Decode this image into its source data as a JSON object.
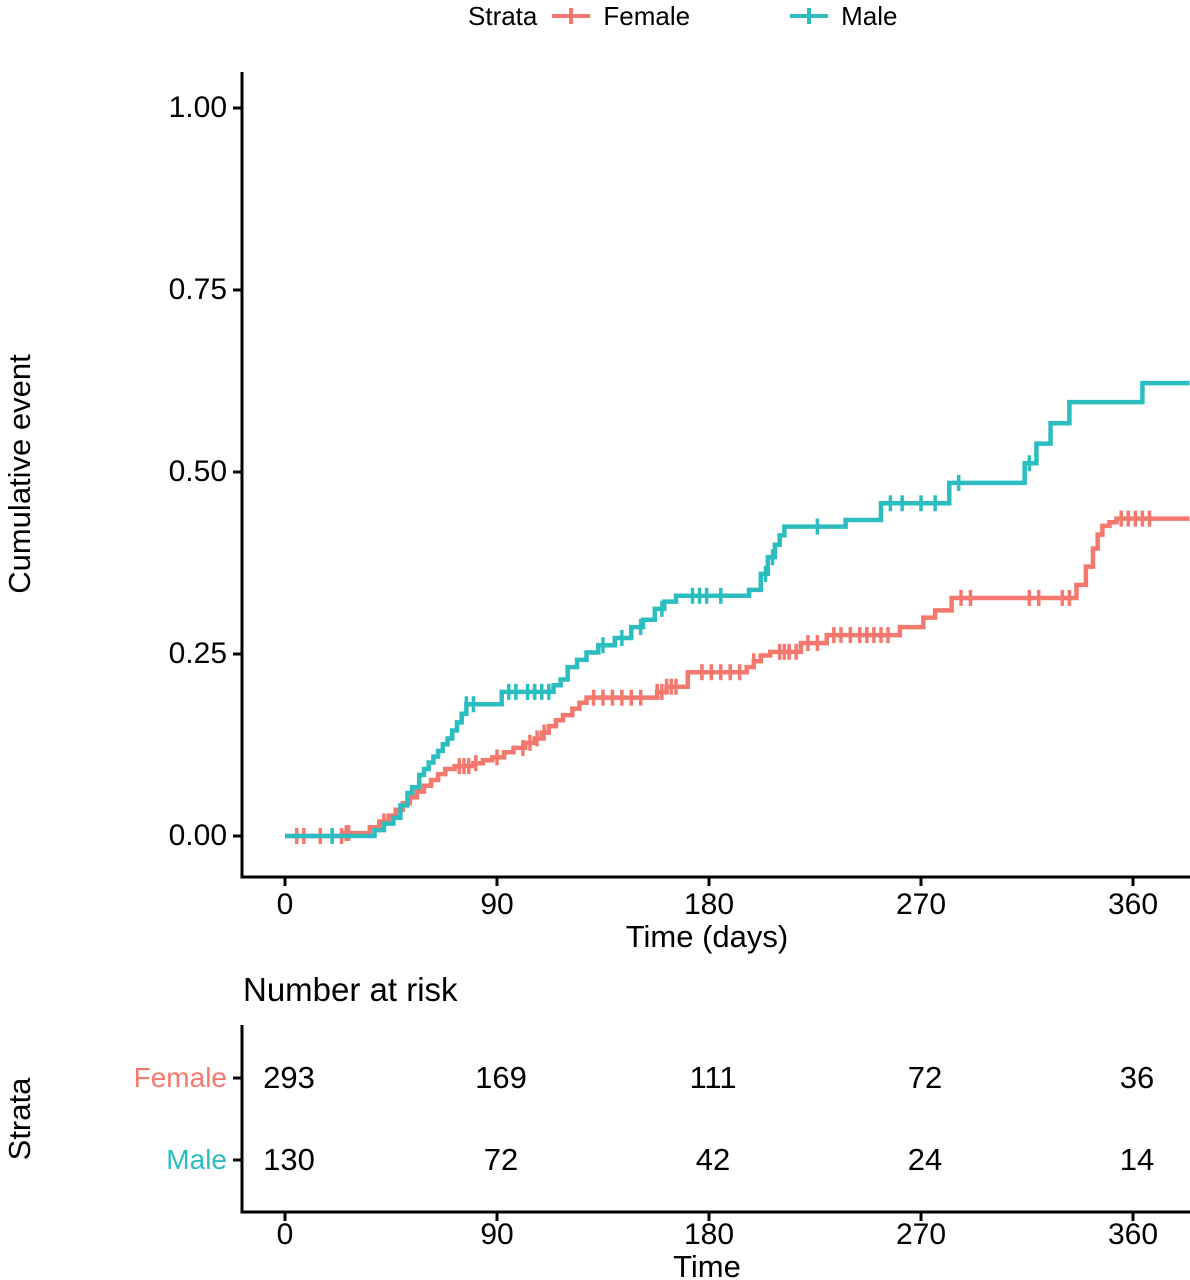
{
  "legend": {
    "title": "Strata",
    "items": [
      {
        "label": "Female",
        "color": "#F4786E"
      },
      {
        "label": "Male",
        "color": "#2BBDBF"
      }
    ]
  },
  "axes": {
    "y": {
      "label": "Cumulative event",
      "ticks": [
        "1.00",
        "0.75",
        "0.50",
        "0.25",
        "0.00"
      ],
      "tick_values": [
        1.0,
        0.75,
        0.5,
        0.25,
        0.0
      ]
    },
    "x": {
      "label": "Time (days)",
      "ticks": [
        "0",
        "90",
        "180",
        "270",
        "360"
      ],
      "tick_values": [
        0,
        90,
        180,
        270,
        360
      ]
    }
  },
  "chart_data": {
    "type": "line",
    "subtype": "kaplan-meier-cumulative-event-step-curves",
    "title": "",
    "xlabel": "Time (days)",
    "ylabel": "Cumulative event",
    "xlim": [
      0,
      384
    ],
    "ylim": [
      0,
      1
    ],
    "xticks": [
      0,
      90,
      180,
      270,
      360
    ],
    "yticks": [
      0,
      0.25,
      0.5,
      0.75,
      1.0
    ],
    "grid": false,
    "legend_position": "top",
    "series": [
      {
        "name": "Female",
        "color": "#F4786E",
        "end_time": 384,
        "steps": [
          [
            0,
            0
          ],
          [
            25,
            0.004
          ],
          [
            36,
            0.012
          ],
          [
            40,
            0.02
          ],
          [
            44,
            0.028
          ],
          [
            47,
            0.036
          ],
          [
            50,
            0.045
          ],
          [
            53,
            0.053
          ],
          [
            56,
            0.061
          ],
          [
            59,
            0.069
          ],
          [
            62,
            0.077
          ],
          [
            65,
            0.085
          ],
          [
            68,
            0.092
          ],
          [
            72,
            0.096
          ],
          [
            80,
            0.1
          ],
          [
            84,
            0.104
          ],
          [
            88,
            0.108
          ],
          [
            93,
            0.115
          ],
          [
            97,
            0.121
          ],
          [
            102,
            0.128
          ],
          [
            106,
            0.134
          ],
          [
            109,
            0.142
          ],
          [
            112,
            0.151
          ],
          [
            115,
            0.159
          ],
          [
            118,
            0.166
          ],
          [
            122,
            0.175
          ],
          [
            125,
            0.183
          ],
          [
            128,
            0.19
          ],
          [
            158,
            0.198
          ],
          [
            162,
            0.205
          ],
          [
            171,
            0.225
          ],
          [
            196,
            0.232
          ],
          [
            199,
            0.24
          ],
          [
            202,
            0.248
          ],
          [
            206,
            0.253
          ],
          [
            219,
            0.265
          ],
          [
            230,
            0.276
          ],
          [
            261,
            0.287
          ],
          [
            271,
            0.3
          ],
          [
            276,
            0.31
          ],
          [
            283,
            0.327
          ],
          [
            336,
            0.345
          ],
          [
            340,
            0.37
          ],
          [
            343,
            0.395
          ],
          [
            345,
            0.414
          ],
          [
            347,
            0.426
          ],
          [
            350,
            0.431
          ],
          [
            353,
            0.436
          ]
        ],
        "censor_times": [
          5,
          8,
          15,
          24,
          26,
          27,
          42,
          74,
          76,
          78,
          81,
          90,
          101,
          104,
          107,
          110,
          131,
          135,
          139,
          143,
          147,
          151,
          158,
          160,
          162,
          164,
          166,
          177,
          181,
          185,
          189,
          193,
          199,
          210,
          212,
          214,
          217,
          222,
          226,
          233,
          236,
          240,
          244,
          247,
          250,
          253,
          256,
          287,
          291,
          316,
          320,
          330,
          333,
          355,
          358,
          361,
          364,
          367
        ]
      },
      {
        "name": "Male",
        "color": "#2BBDBF",
        "end_time": 384,
        "steps": [
          [
            0,
            0
          ],
          [
            38,
            0.008
          ],
          [
            42,
            0.017
          ],
          [
            46,
            0.025
          ],
          [
            49,
            0.042
          ],
          [
            52,
            0.059
          ],
          [
            54,
            0.067
          ],
          [
            57,
            0.084
          ],
          [
            59,
            0.092
          ],
          [
            61,
            0.101
          ],
          [
            63,
            0.109
          ],
          [
            65,
            0.117
          ],
          [
            67,
            0.126
          ],
          [
            69,
            0.134
          ],
          [
            71,
            0.145
          ],
          [
            73,
            0.156
          ],
          [
            75,
            0.168
          ],
          [
            77,
            0.181
          ],
          [
            92,
            0.198
          ],
          [
            114,
            0.207
          ],
          [
            117,
            0.215
          ],
          [
            120,
            0.232
          ],
          [
            124,
            0.242
          ],
          [
            128,
            0.252
          ],
          [
            133,
            0.262
          ],
          [
            140,
            0.272
          ],
          [
            147,
            0.287
          ],
          [
            152,
            0.297
          ],
          [
            157,
            0.312
          ],
          [
            161,
            0.322
          ],
          [
            166,
            0.33
          ],
          [
            197,
            0.338
          ],
          [
            202,
            0.36
          ],
          [
            205,
            0.383
          ],
          [
            208,
            0.4
          ],
          [
            210,
            0.413
          ],
          [
            212,
            0.425
          ],
          [
            238,
            0.434
          ],
          [
            253,
            0.457
          ],
          [
            282,
            0.485
          ],
          [
            314,
            0.512
          ],
          [
            319,
            0.539
          ],
          [
            325,
            0.567
          ],
          [
            333,
            0.596
          ],
          [
            364,
            0.622
          ]
        ],
        "censor_times": [
          20,
          77,
          80,
          95,
          98,
          103,
          106,
          109,
          112,
          135,
          143,
          151,
          160,
          173,
          176,
          179,
          185,
          204,
          207,
          226,
          257,
          262,
          270,
          276,
          286,
          316
        ]
      }
    ]
  },
  "risk_table": {
    "title": "Number at risk",
    "ylabel": "Strata",
    "xlabel": "Time",
    "rows": [
      {
        "label": "Female",
        "color": "#F4786E",
        "values": [
          "293",
          "169",
          "111",
          "72",
          "36"
        ]
      },
      {
        "label": "Male",
        "color": "#2BBDBF",
        "values": [
          "130",
          "72",
          "42",
          "24",
          "14"
        ]
      }
    ]
  }
}
